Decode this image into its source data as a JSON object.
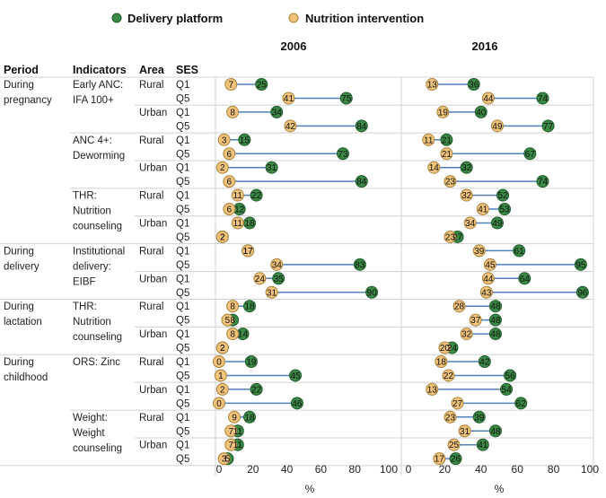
{
  "legend": {
    "delivery_label": "Delivery platform",
    "nutrition_label": "Nutrition intervention"
  },
  "headers": {
    "period": "Period",
    "indicators": "Indicators",
    "area": "Area",
    "ses": "SES"
  },
  "colors": {
    "delivery_fill": "#3a8a45",
    "delivery_stroke": "#1f5a2a",
    "nutrition_fill": "#f1c27a",
    "nutrition_stroke": "#a9843c",
    "connector": "#4f81bd",
    "grid": "#d0d0d0"
  },
  "x_axis_label": "%",
  "x_ticks": [
    "0",
    "20",
    "40",
    "60",
    "80",
    "100"
  ],
  "chart_data": {
    "type": "dumbbell",
    "xlim": [
      0,
      100
    ],
    "panels": [
      "2006",
      "2016"
    ],
    "series": [
      {
        "name": "Delivery platform"
      },
      {
        "name": "Nutrition intervention"
      }
    ],
    "periods": [
      {
        "label": [
          "During",
          "pregnancy"
        ],
        "indicators": [
          {
            "label": [
              "Early ANC:",
              "IFA 100+"
            ],
            "areas": [
              {
                "area": "Rural",
                "rows": [
                  {
                    "ses": "Q1",
                    "y2006": {
                      "delivery": 25,
                      "nutrition": 7
                    },
                    "y2016": {
                      "delivery": 36,
                      "nutrition": 13
                    }
                  },
                  {
                    "ses": "Q5",
                    "y2006": {
                      "delivery": 75,
                      "nutrition": 41
                    },
                    "y2016": {
                      "delivery": 74,
                      "nutrition": 44
                    }
                  }
                ]
              },
              {
                "area": "Urban",
                "rows": [
                  {
                    "ses": "Q1",
                    "y2006": {
                      "delivery": 34,
                      "nutrition": 8
                    },
                    "y2016": {
                      "delivery": 40,
                      "nutrition": 19
                    }
                  },
                  {
                    "ses": "Q5",
                    "y2006": {
                      "delivery": 84,
                      "nutrition": 42
                    },
                    "y2016": {
                      "delivery": 77,
                      "nutrition": 49
                    }
                  }
                ]
              }
            ]
          },
          {
            "label": [
              "ANC 4+:",
              "Deworming"
            ],
            "areas": [
              {
                "area": "Rural",
                "rows": [
                  {
                    "ses": "Q1",
                    "y2006": {
                      "delivery": 15,
                      "nutrition": 3
                    },
                    "y2016": {
                      "delivery": 21,
                      "nutrition": 11
                    }
                  },
                  {
                    "ses": "Q5",
                    "y2006": {
                      "delivery": 73,
                      "nutrition": 6
                    },
                    "y2016": {
                      "delivery": 67,
                      "nutrition": 21
                    }
                  }
                ]
              },
              {
                "area": "Urban",
                "rows": [
                  {
                    "ses": "Q1",
                    "y2006": {
                      "delivery": 31,
                      "nutrition": 2
                    },
                    "y2016": {
                      "delivery": 32,
                      "nutrition": 14
                    }
                  },
                  {
                    "ses": "Q5",
                    "y2006": {
                      "delivery": 84,
                      "nutrition": 6
                    },
                    "y2016": {
                      "delivery": 74,
                      "nutrition": 23
                    }
                  }
                ]
              }
            ]
          },
          {
            "label": [
              "THR:",
              "Nutrition",
              "counseling"
            ],
            "areas": [
              {
                "area": "Rural",
                "rows": [
                  {
                    "ses": "Q1",
                    "y2006": {
                      "delivery": 22,
                      "nutrition": 11
                    },
                    "y2016": {
                      "delivery": 52,
                      "nutrition": 32
                    }
                  },
                  {
                    "ses": "Q5",
                    "y2006": {
                      "delivery": 12,
                      "nutrition": 6
                    },
                    "y2016": {
                      "delivery": 53,
                      "nutrition": 41
                    }
                  }
                ]
              },
              {
                "area": "Urban",
                "rows": [
                  {
                    "ses": "Q1",
                    "y2006": {
                      "delivery": 18,
                      "nutrition": 11
                    },
                    "y2016": {
                      "delivery": 49,
                      "nutrition": 34
                    }
                  },
                  {
                    "ses": "Q5",
                    "y2006": {
                      "delivery": 2,
                      "nutrition": 2
                    },
                    "y2016": {
                      "delivery": 27,
                      "nutrition": 23
                    }
                  }
                ]
              }
            ]
          }
        ]
      },
      {
        "label": [
          "During",
          "delivery"
        ],
        "indicators": [
          {
            "label": [
              "Institutional",
              "delivery:",
              "EIBF"
            ],
            "areas": [
              {
                "area": "Rural",
                "rows": [
                  {
                    "ses": "Q1",
                    "y2006": {
                      "delivery": 17,
                      "nutrition": 17
                    },
                    "y2016": {
                      "delivery": 61,
                      "nutrition": 39
                    }
                  },
                  {
                    "ses": "Q5",
                    "y2006": {
                      "delivery": 83,
                      "nutrition": 34
                    },
                    "y2016": {
                      "delivery": 95,
                      "nutrition": 45
                    }
                  }
                ]
              },
              {
                "area": "Urban",
                "rows": [
                  {
                    "ses": "Q1",
                    "y2006": {
                      "delivery": 35,
                      "nutrition": 24
                    },
                    "y2016": {
                      "delivery": 64,
                      "nutrition": 44
                    }
                  },
                  {
                    "ses": "Q5",
                    "y2006": {
                      "delivery": 90,
                      "nutrition": 31
                    },
                    "y2016": {
                      "delivery": 96,
                      "nutrition": 43
                    }
                  }
                ]
              }
            ]
          }
        ]
      },
      {
        "label": [
          "During",
          "lactation"
        ],
        "indicators": [
          {
            "label": [
              "THR:",
              "Nutrition",
              "counseling"
            ],
            "areas": [
              {
                "area": "Rural",
                "rows": [
                  {
                    "ses": "Q1",
                    "y2006": {
                      "delivery": 18,
                      "nutrition": 8
                    },
                    "y2016": {
                      "delivery": 48,
                      "nutrition": 28
                    }
                  },
                  {
                    "ses": "Q5",
                    "y2006": {
                      "delivery": 8,
                      "nutrition": 5
                    },
                    "y2016": {
                      "delivery": 48,
                      "nutrition": 37
                    }
                  }
                ]
              },
              {
                "area": "Urban",
                "rows": [
                  {
                    "ses": "Q1",
                    "y2006": {
                      "delivery": 14,
                      "nutrition": 8
                    },
                    "y2016": {
                      "delivery": 48,
                      "nutrition": 32
                    }
                  },
                  {
                    "ses": "Q5",
                    "y2006": {
                      "delivery": 2,
                      "nutrition": 2
                    },
                    "y2016": {
                      "delivery": 24,
                      "nutrition": 20
                    }
                  }
                ]
              }
            ]
          }
        ]
      },
      {
        "label": [
          "During",
          "childhood"
        ],
        "indicators": [
          {
            "label": [
              "ORS: Zinc"
            ],
            "areas": [
              {
                "area": "Rural",
                "rows": [
                  {
                    "ses": "Q1",
                    "y2006": {
                      "delivery": 19,
                      "nutrition": 0
                    },
                    "y2016": {
                      "delivery": 42,
                      "nutrition": 18
                    }
                  },
                  {
                    "ses": "Q5",
                    "y2006": {
                      "delivery": 45,
                      "nutrition": 1
                    },
                    "y2016": {
                      "delivery": 56,
                      "nutrition": 22
                    }
                  }
                ]
              },
              {
                "area": "Urban",
                "rows": [
                  {
                    "ses": "Q1",
                    "y2006": {
                      "delivery": 22,
                      "nutrition": 2
                    },
                    "y2016": {
                      "delivery": 54,
                      "nutrition": 13
                    }
                  },
                  {
                    "ses": "Q5",
                    "y2006": {
                      "delivery": 46,
                      "nutrition": 0
                    },
                    "y2016": {
                      "delivery": 62,
                      "nutrition": 27
                    }
                  }
                ]
              }
            ]
          },
          {
            "label": [
              "Weight:",
              "Weight",
              "counseling"
            ],
            "areas": [
              {
                "area": "Rural",
                "rows": [
                  {
                    "ses": "Q1",
                    "y2006": {
                      "delivery": 18,
                      "nutrition": 9
                    },
                    "y2016": {
                      "delivery": 39,
                      "nutrition": 23
                    }
                  },
                  {
                    "ses": "Q5",
                    "y2006": {
                      "delivery": 11,
                      "nutrition": 7
                    },
                    "y2016": {
                      "delivery": 48,
                      "nutrition": 31
                    }
                  }
                ]
              },
              {
                "area": "Urban",
                "rows": [
                  {
                    "ses": "Q1",
                    "y2006": {
                      "delivery": 11,
                      "nutrition": 7
                    },
                    "y2016": {
                      "delivery": 41,
                      "nutrition": 25
                    }
                  },
                  {
                    "ses": "Q5",
                    "y2006": {
                      "delivery": 5,
                      "nutrition": 3
                    },
                    "y2016": {
                      "delivery": 26,
                      "nutrition": 17
                    }
                  }
                ]
              }
            ]
          }
        ]
      }
    ]
  }
}
